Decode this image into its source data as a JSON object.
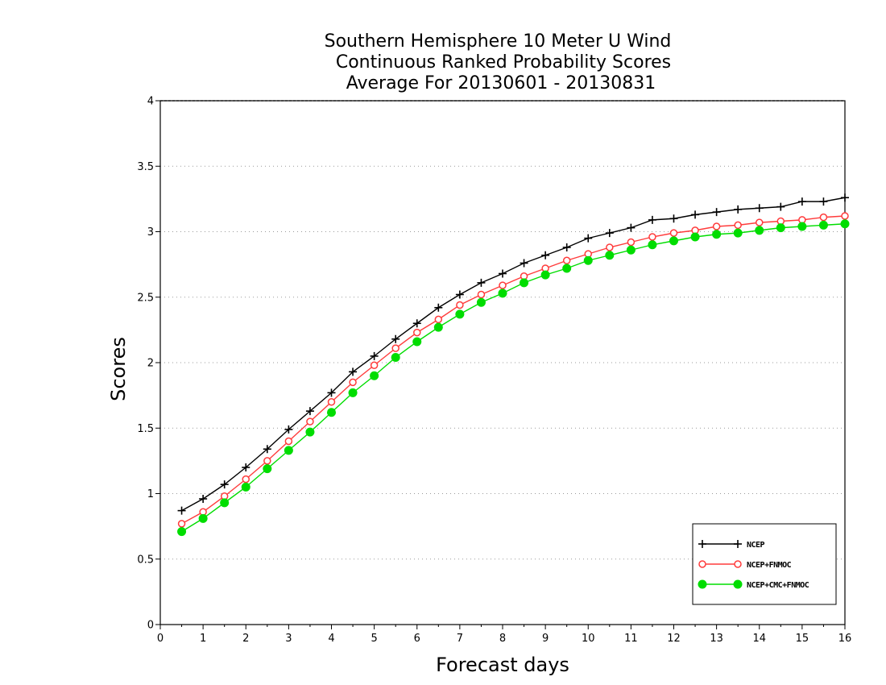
{
  "chart_data": {
    "type": "line",
    "title": [
      "Southern Hemisphere 10 Meter U Wind",
      "Continuous Ranked Probability Scores",
      "Average For 20130601 - 20130831"
    ],
    "xlabel": "Forecast days",
    "ylabel": "Scores",
    "xlim": [
      0,
      16
    ],
    "ylim": [
      0,
      4
    ],
    "xticks": [
      0,
      1,
      2,
      3,
      4,
      5,
      6,
      7,
      8,
      9,
      10,
      11,
      12,
      13,
      14,
      15,
      16
    ],
    "yticks": [
      0,
      0.5,
      1,
      1.5,
      2,
      2.5,
      3,
      3.5,
      4
    ],
    "ytick_labels": [
      "0",
      "0.5",
      "1",
      "1.5",
      "2",
      "2.5",
      "3",
      "3.5",
      "4"
    ],
    "grid": "horizontal-dotted",
    "legend_position": "bottom-right",
    "x": [
      0.5,
      1,
      1.5,
      2,
      2.5,
      3,
      3.5,
      4,
      4.5,
      5,
      5.5,
      6,
      6.5,
      7,
      7.5,
      8,
      8.5,
      9,
      9.5,
      10,
      10.5,
      11,
      11.5,
      12,
      12.5,
      13,
      13.5,
      14,
      14.5,
      15,
      15.5,
      16
    ],
    "series": [
      {
        "name": "NCEP",
        "color": "#000000",
        "marker": "plus",
        "values": [
          0.87,
          0.96,
          1.07,
          1.2,
          1.34,
          1.49,
          1.63,
          1.77,
          1.93,
          2.05,
          2.18,
          2.3,
          2.42,
          2.52,
          2.61,
          2.68,
          2.76,
          2.82,
          2.88,
          2.95,
          2.99,
          3.03,
          3.09,
          3.1,
          3.13,
          3.15,
          3.17,
          3.18,
          3.19,
          3.23,
          3.23,
          3.26
        ]
      },
      {
        "name": "NCEP+FNMOC",
        "color": "#ff3b3b",
        "marker": "open-circle",
        "values": [
          0.77,
          0.86,
          0.98,
          1.11,
          1.25,
          1.4,
          1.55,
          1.7,
          1.85,
          1.98,
          2.11,
          2.23,
          2.33,
          2.44,
          2.52,
          2.59,
          2.66,
          2.72,
          2.78,
          2.83,
          2.88,
          2.92,
          2.96,
          2.99,
          3.01,
          3.04,
          3.05,
          3.07,
          3.08,
          3.09,
          3.11,
          3.12
        ]
      },
      {
        "name": "NCEP+CMC+FNMOC",
        "color": "#00dd00",
        "marker": "filled-circle",
        "values": [
          0.71,
          0.81,
          0.93,
          1.05,
          1.19,
          1.33,
          1.47,
          1.62,
          1.77,
          1.9,
          2.04,
          2.16,
          2.27,
          2.37,
          2.46,
          2.53,
          2.61,
          2.67,
          2.72,
          2.78,
          2.82,
          2.86,
          2.9,
          2.93,
          2.96,
          2.98,
          2.99,
          3.01,
          3.03,
          3.04,
          3.05,
          3.06
        ]
      }
    ]
  }
}
